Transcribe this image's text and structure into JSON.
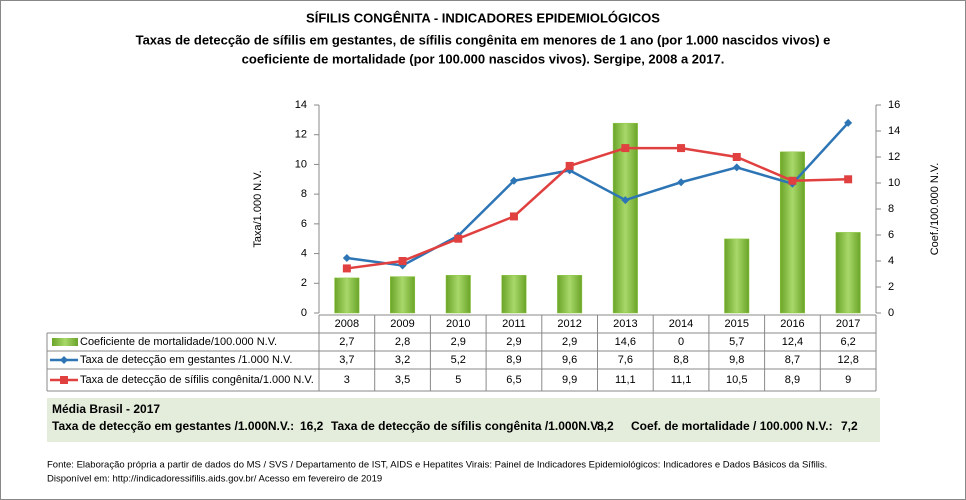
{
  "chart_data": {
    "type": "combo",
    "title": "SÍFILIS CONGÊNITA - INDICADORES EPIDEMIOLÓGICOS",
    "subtitle": [
      "Taxas de detecção de sífilis em gestantes, de sífilis congênita em menores de 1 ano (por 1.000 nascidos vivos) e",
      "coeficiente de mortalidade (por 100.000 nascidos vivos). Sergipe, 2008 a 2017."
    ],
    "y_label": "Taxa/1.000 N.V.",
    "y2_label": "Coef./100.000 N.V.",
    "categories": [
      "2008",
      "2009",
      "2010",
      "2011",
      "2012",
      "2013",
      "2014",
      "2015",
      "2016",
      "2017"
    ],
    "ylim": [
      0,
      14
    ],
    "yticks": [
      0,
      2,
      4,
      6,
      8,
      10,
      12,
      14
    ],
    "y2lim": [
      0,
      16
    ],
    "y2ticks": [
      0,
      2,
      4,
      6,
      8,
      10,
      12,
      14,
      16
    ],
    "grid": false,
    "series": [
      {
        "name": "Coeficiente de mortalidade/100.000 N.V.",
        "type": "bar",
        "axis": "y2",
        "color": "#8cc63f",
        "values": [
          2.7,
          2.8,
          2.9,
          2.9,
          2.9,
          14.6,
          0,
          5.7,
          12.4,
          6.2
        ],
        "value_labels": [
          "2,7",
          "2,8",
          "2,9",
          "2,9",
          "2,9",
          "14,6",
          "0",
          "5,7",
          "12,4",
          "6,2"
        ]
      },
      {
        "name": "Taxa de detecção em gestantes /1.000 N.V.",
        "type": "line",
        "marker": "diamond",
        "color": "#2e75b6",
        "values": [
          3.7,
          3.2,
          5.2,
          8.9,
          9.6,
          7.6,
          8.8,
          9.8,
          8.7,
          12.8
        ],
        "value_labels": [
          "3,7",
          "3,2",
          "5,2",
          "8,9",
          "9,6",
          "7,6",
          "8,8",
          "9,8",
          "8,7",
          "12,8"
        ]
      },
      {
        "name": "Taxa de detecção de sífilis congênita/1.000 N.V.",
        "type": "line",
        "marker": "square",
        "color": "#e0403f",
        "values": [
          3,
          3.5,
          5,
          6.5,
          9.9,
          11.1,
          11.1,
          10.5,
          8.9,
          9
        ],
        "value_labels": [
          "3",
          "3,5",
          "5",
          "6,5",
          "9,9",
          "11,1",
          "11,1",
          "10,5",
          "8,9",
          "9"
        ]
      }
    ]
  },
  "summary": {
    "title": "Média Brasil - 2017",
    "items": [
      {
        "label": "Taxa de detecção em gestantes /1.000N.V.:",
        "value": "16,2"
      },
      {
        "label": "Taxa de detecção de sífilis congênita /1.000N.V.:",
        "value": "8,2"
      },
      {
        "label": "Coef. de mortalidade / 100.000 N.V.:",
        "value": "7,2"
      }
    ]
  },
  "source": [
    "Fonte: Elaboração própria a partir de dados do MS / SVS / Departamento de IST, AIDS e Hepatites Virais: Painel de Indicadores Epidemiológicos: Indicadores e Dados Básicos da Sífilis.",
    "Disponível em: http://indicadoressifilis.aids.gov.br/   Acesso em fevereiro de 2019"
  ]
}
